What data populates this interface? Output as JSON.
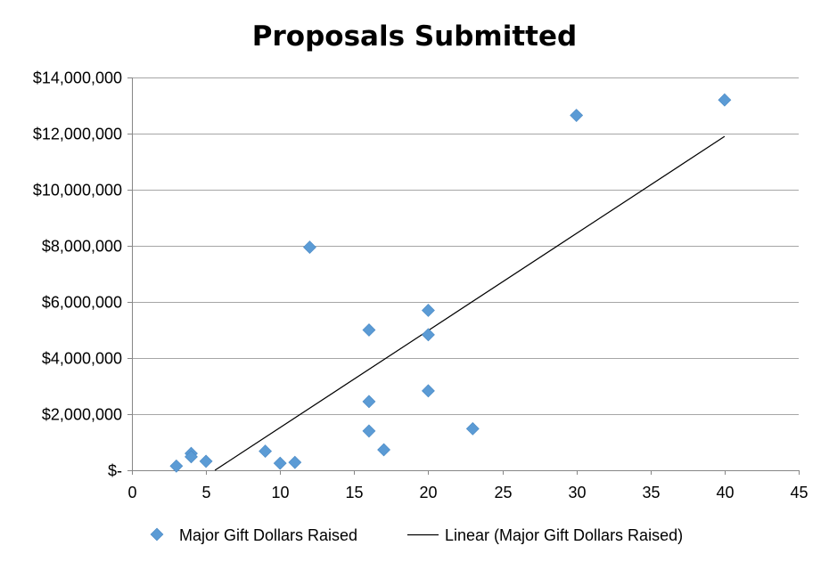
{
  "chart_data": {
    "type": "scatter",
    "title": "Proposals Submitted",
    "xlim": [
      0,
      45
    ],
    "ylim": [
      0,
      14000000
    ],
    "x_ticks": [
      0,
      5,
      10,
      15,
      20,
      25,
      30,
      35,
      40,
      45
    ],
    "x_tick_labels": [
      "0",
      "5",
      "10",
      "15",
      "20",
      "25",
      "30",
      "35",
      "40",
      "45"
    ],
    "y_ticks": [
      0,
      2000000,
      4000000,
      6000000,
      8000000,
      10000000,
      12000000,
      14000000
    ],
    "y_tick_labels": [
      "$-",
      "$2,000,000",
      "$4,000,000",
      "$6,000,000",
      "$8,000,000",
      "$10,000,000",
      "$12,000,000",
      "$14,000,000"
    ],
    "grid": "horizontal",
    "legend_position": "bottom",
    "series": [
      {
        "name": "Major Gift Dollars Raised",
        "color": "#5b9bd5",
        "marker": "diamond",
        "points": [
          {
            "x": 3,
            "y": 150000
          },
          {
            "x": 4,
            "y": 600000
          },
          {
            "x": 4,
            "y": 480000
          },
          {
            "x": 5,
            "y": 320000
          },
          {
            "x": 9,
            "y": 680000
          },
          {
            "x": 10,
            "y": 250000
          },
          {
            "x": 11,
            "y": 280000
          },
          {
            "x": 12,
            "y": 7950000
          },
          {
            "x": 16,
            "y": 5000000
          },
          {
            "x": 16,
            "y": 2450000
          },
          {
            "x": 16,
            "y": 1400000
          },
          {
            "x": 17,
            "y": 730000
          },
          {
            "x": 20,
            "y": 5700000
          },
          {
            "x": 20,
            "y": 4830000
          },
          {
            "x": 20,
            "y": 2830000
          },
          {
            "x": 23,
            "y": 1480000
          },
          {
            "x": 30,
            "y": 12650000
          },
          {
            "x": 40,
            "y": 13200000
          }
        ]
      }
    ],
    "trendline": {
      "name": "Linear (Major Gift Dollars Raised)",
      "type": "linear",
      "color": "#000000",
      "x_start": 5.6,
      "x_end": 40,
      "y_end": 11900000
    }
  }
}
